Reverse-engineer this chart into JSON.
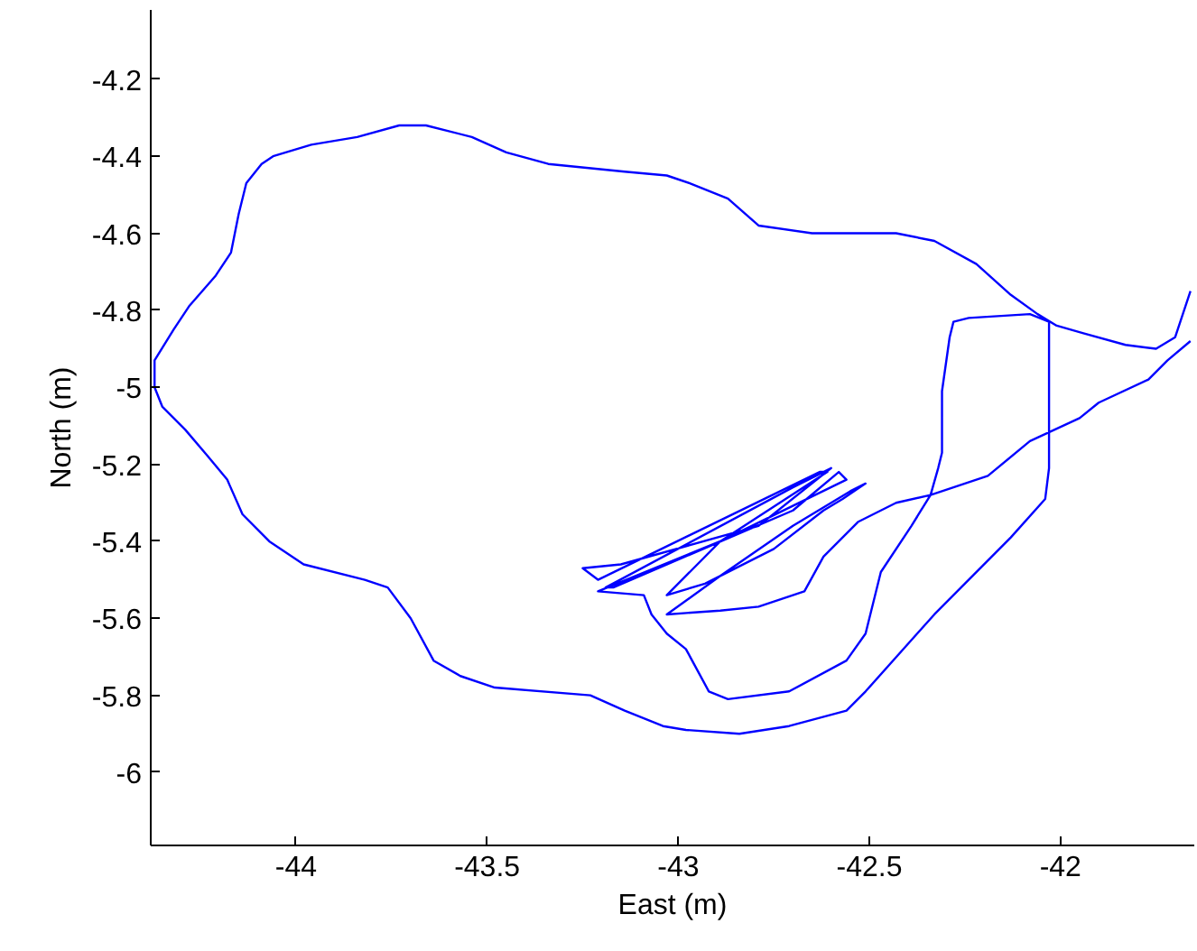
{
  "chart_data": {
    "type": "line",
    "xlabel": "East (m)",
    "ylabel": "North (m)",
    "xlim": [
      -44.38,
      -41.65
    ],
    "ylim": [
      -6.19,
      -4.02
    ],
    "xticks": [
      -44,
      -43.5,
      -43,
      -42.5,
      -42
    ],
    "yticks": [
      -6,
      -5.8,
      -5.6,
      -5.4,
      -5.2,
      -5,
      -4.8,
      -4.6,
      -4.4,
      -4.2
    ],
    "series": [
      {
        "color": "#0000ff",
        "x": [
          -41.66,
          -41.68,
          -41.7,
          -41.75,
          -41.83,
          -41.94,
          -42.01,
          -42.06,
          -42.13,
          -42.22,
          -42.33,
          -42.43,
          -42.65,
          -42.79,
          -42.87,
          -42.97,
          -43.03,
          -43.14,
          -43.34,
          -43.45,
          -43.54,
          -43.66,
          -43.73,
          -43.84,
          -43.96,
          -44.06,
          -44.09,
          -44.13,
          -44.15,
          -44.17,
          -44.21,
          -44.28,
          -44.32,
          -44.37,
          -44.37,
          -44.35,
          -44.29,
          -44.23,
          -44.18,
          -44.14,
          -44.07,
          -43.98,
          -43.82,
          -43.76,
          -43.7,
          -43.64,
          -43.57,
          -43.48,
          -43.23,
          -43.14,
          -43.04,
          -42.98,
          -42.84,
          -42.71,
          -42.56,
          -42.51,
          -42.33,
          -42.13,
          -42.04,
          -42.03,
          -42.03,
          -42.03,
          -42.03,
          -42.08,
          -42.24,
          -42.28,
          -42.29,
          -42.31,
          -42.31,
          -42.32,
          -42.34,
          -42.39,
          -42.47,
          -42.51,
          -42.56,
          -42.71,
          -42.87,
          -42.92,
          -42.98,
          -43.03,
          -43.07,
          -43.09,
          -43.21,
          -42.89,
          -42.61,
          -42.63,
          -43.21,
          -43.25,
          -43.15,
          -42.79,
          -42.6,
          -42.7,
          -43.19,
          -43.17,
          -42.7,
          -42.58,
          -42.56,
          -42.89,
          -43.03,
          -42.93,
          -42.75,
          -42.62,
          -42.57,
          -42.51,
          -42.55,
          -42.7,
          -42.89,
          -43.03,
          -42.89,
          -42.79,
          -42.67,
          -42.62,
          -42.53,
          -42.43,
          -42.34,
          -42.19,
          -42.08,
          -41.95,
          -41.9,
          -41.77,
          -41.72,
          -41.66
        ],
        "values": [
          -4.75,
          -4.81,
          -4.87,
          -4.9,
          -4.89,
          -4.86,
          -4.84,
          -4.81,
          -4.76,
          -4.68,
          -4.62,
          -4.6,
          -4.6,
          -4.58,
          -4.51,
          -4.47,
          -4.45,
          -4.44,
          -4.42,
          -4.39,
          -4.35,
          -4.32,
          -4.32,
          -4.35,
          -4.37,
          -4.4,
          -4.42,
          -4.47,
          -4.55,
          -4.65,
          -4.71,
          -4.79,
          -4.85,
          -4.93,
          -5.0,
          -5.05,
          -5.11,
          -5.18,
          -5.24,
          -5.33,
          -5.4,
          -5.46,
          -5.5,
          -5.52,
          -5.6,
          -5.71,
          -5.75,
          -5.78,
          -5.8,
          -5.84,
          -5.88,
          -5.89,
          -5.9,
          -5.88,
          -5.84,
          -5.79,
          -5.59,
          -5.39,
          -5.29,
          -5.21,
          -5.12,
          -4.93,
          -4.83,
          -4.81,
          -4.82,
          -4.83,
          -4.87,
          -5.01,
          -5.17,
          -5.21,
          -5.28,
          -5.36,
          -5.48,
          -5.64,
          -5.71,
          -5.79,
          -5.81,
          -5.79,
          -5.68,
          -5.64,
          -5.59,
          -5.54,
          -5.53,
          -5.4,
          -5.22,
          -5.22,
          -5.5,
          -5.47,
          -5.46,
          -5.36,
          -5.21,
          -5.26,
          -5.52,
          -5.52,
          -5.32,
          -5.22,
          -5.24,
          -5.4,
          -5.54,
          -5.51,
          -5.42,
          -5.32,
          -5.29,
          -5.25,
          -5.27,
          -5.36,
          -5.49,
          -5.59,
          -5.58,
          -5.57,
          -5.53,
          -5.44,
          -5.35,
          -5.3,
          -5.28,
          -5.23,
          -5.14,
          -5.08,
          -5.04,
          -4.98,
          -4.93,
          -4.88
        ]
      }
    ]
  }
}
